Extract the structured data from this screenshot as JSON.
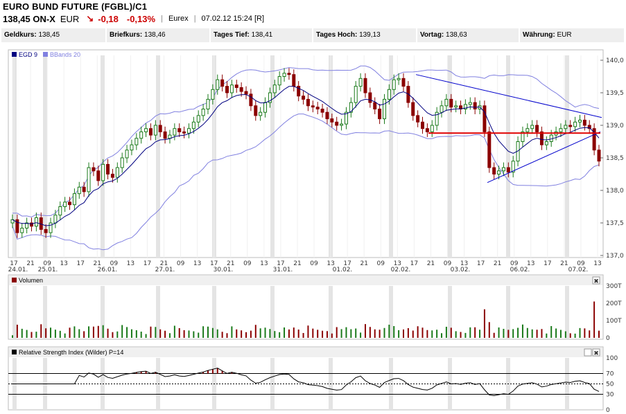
{
  "header": {
    "title": "EURO BUND FUTURE (FGBL)/C1",
    "price": "138,45 ON-X",
    "currency": "EUR",
    "change": "-0,18",
    "change_pct": "-0,13%",
    "exchange": "Eurex",
    "datetime": "07.02.12 15:24 [R]",
    "trend_icon": "down-arrow-icon"
  },
  "quote_bar": [
    {
      "label": "Geldkurs:",
      "value": "138,45"
    },
    {
      "label": "Briefkurs:",
      "value": "138,46"
    },
    {
      "label": "Tages Tief:",
      "value": "138,41"
    },
    {
      "label": "Tages Hoch:",
      "value": "139,13"
    },
    {
      "label": "Vortag:",
      "value": "138,63"
    },
    {
      "label": "Währung:",
      "value": "EUR"
    }
  ],
  "colors": {
    "up": "#1a7a1a",
    "down": "#8b0000",
    "ema": "#000080",
    "bbands": "#8080e0",
    "trend": "#0000cc",
    "support": "#e00000",
    "panel_bg": "#f0f0f0"
  },
  "chart_data": [
    {
      "type": "candlestick",
      "legend": [
        {
          "name": "EGD 9",
          "color": "#000080"
        },
        {
          "name": "BBands 20",
          "color": "#8080e0"
        }
      ],
      "y_ticks": [
        "140,0",
        "139,5",
        "139,0",
        "138,5",
        "138,0",
        "137,5",
        "137,0"
      ],
      "ylim": [
        137.0,
        140.0
      ],
      "x_hour_ticks": [
        "17",
        "21",
        "09",
        "13",
        "17",
        "21",
        "09",
        "13",
        "17",
        "21",
        "09",
        "13",
        "17",
        "21",
        "09",
        "13",
        "17",
        "21",
        "09",
        "13",
        "17",
        "21",
        "09",
        "13",
        "17",
        "21",
        "09",
        "13",
        "17",
        "21",
        "09",
        "13",
        "17",
        "21",
        "09",
        "13"
      ],
      "x_date_ticks": [
        "24.01.",
        "25.01.",
        "26.01.",
        "27.01.",
        "30.01.",
        "31.01.",
        "01.02.",
        "02.02.",
        "03.02.",
        "06.02.",
        "07.02."
      ],
      "close_series": [
        137.55,
        137.35,
        137.42,
        137.5,
        137.45,
        137.58,
        137.4,
        137.35,
        137.5,
        137.62,
        137.75,
        137.82,
        137.78,
        137.95,
        138.05,
        137.98,
        138.35,
        138.3,
        138.15,
        138.4,
        138.25,
        138.2,
        138.35,
        138.5,
        138.62,
        138.7,
        138.8,
        138.9,
        138.95,
        138.85,
        139.0,
        138.9,
        138.8,
        138.85,
        138.95,
        138.9,
        138.88,
        138.95,
        139.05,
        139.15,
        139.25,
        139.4,
        139.55,
        139.7,
        139.6,
        139.5,
        139.62,
        139.58,
        139.52,
        139.48,
        139.3,
        139.15,
        139.2,
        139.35,
        139.5,
        139.62,
        139.75,
        139.8,
        139.78,
        139.6,
        139.45,
        139.4,
        139.3,
        139.28,
        139.25,
        139.2,
        139.1,
        139.05,
        139.0,
        139.02,
        139.2,
        139.35,
        139.6,
        139.72,
        139.5,
        139.35,
        139.25,
        139.1,
        139.4,
        139.55,
        139.7,
        139.72,
        139.6,
        139.35,
        139.15,
        139.05,
        138.95,
        138.9,
        139.0,
        139.2,
        139.3,
        139.4,
        139.28,
        139.3,
        139.25,
        139.32,
        139.35,
        139.25,
        139.3,
        138.9,
        138.35,
        138.25,
        138.3,
        138.35,
        138.28,
        138.45,
        138.75,
        138.9,
        138.95,
        139.0,
        138.9,
        138.7,
        138.75,
        138.85,
        138.9,
        138.95,
        139.0,
        138.98,
        139.05,
        139.08,
        139.0,
        138.95,
        138.62,
        138.45
      ],
      "volume_ticks": [
        "300T",
        "200T",
        "100T",
        "0"
      ],
      "volume_max": 300,
      "rsi_ticks": [
        "100",
        "70",
        "50",
        "30",
        "0"
      ],
      "rsi_label": "Relative Strength Index (Wilder) P=14",
      "volume_label": "Volumen"
    }
  ]
}
